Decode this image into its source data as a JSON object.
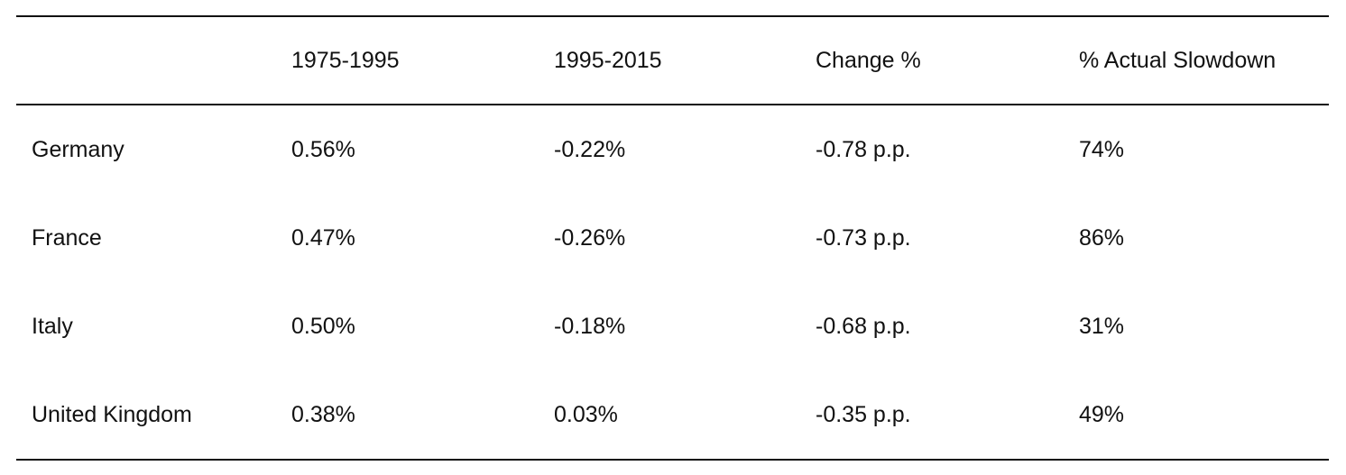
{
  "table": {
    "headers": [
      "",
      "1975-1995",
      "1995-2015",
      "Change %",
      "% Actual Slowdown"
    ],
    "rows": [
      [
        "Germany",
        "0.56%",
        "-0.22%",
        "-0.78 p.p.",
        "74%"
      ],
      [
        "France",
        "0.47%",
        "-0.26%",
        "-0.73 p.p.",
        "86%"
      ],
      [
        "Italy",
        "0.50%",
        "-0.18%",
        "-0.68 p.p.",
        "31%"
      ],
      [
        "United Kingdom",
        "0.38%",
        "0.03%",
        "-0.35 p.p.",
        "49%"
      ]
    ]
  }
}
